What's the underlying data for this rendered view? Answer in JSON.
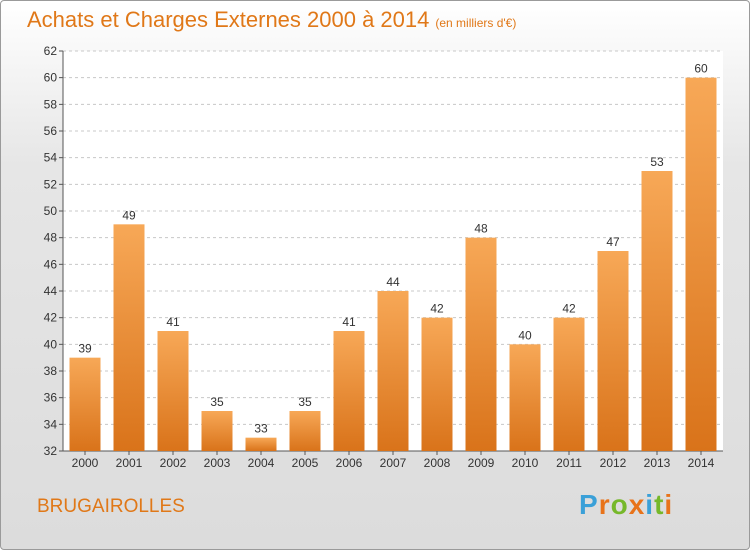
{
  "chart_data": {
    "type": "bar",
    "title": "Achats et Charges Externes 2000 à 2014",
    "subtitle": "(en milliers d'€)",
    "categories": [
      "2000",
      "2001",
      "2002",
      "2003",
      "2004",
      "2005",
      "2006",
      "2007",
      "2008",
      "2009",
      "2010",
      "2011",
      "2012",
      "2013",
      "2014"
    ],
    "values": [
      39,
      49,
      41,
      35,
      33,
      35,
      41,
      44,
      42,
      48,
      40,
      42,
      47,
      53,
      60
    ],
    "ylim": [
      32,
      62
    ],
    "yticks": [
      32,
      34,
      36,
      38,
      40,
      42,
      44,
      46,
      48,
      50,
      52,
      54,
      56,
      58,
      60,
      62
    ],
    "grid": true,
    "bar_color_top": "#f7a857",
    "bar_color_bottom": "#d9731a"
  },
  "footer": {
    "town": "BRUGAIROLLES",
    "logo": {
      "letters": [
        "P",
        "r",
        "o",
        "x",
        "i",
        "t",
        "i"
      ],
      "colors": [
        "#3aa0d8",
        "#e8731a",
        "#76b82a",
        "#e8731a",
        "#3aa0d8",
        "#76b82a",
        "#e8731a"
      ]
    }
  }
}
